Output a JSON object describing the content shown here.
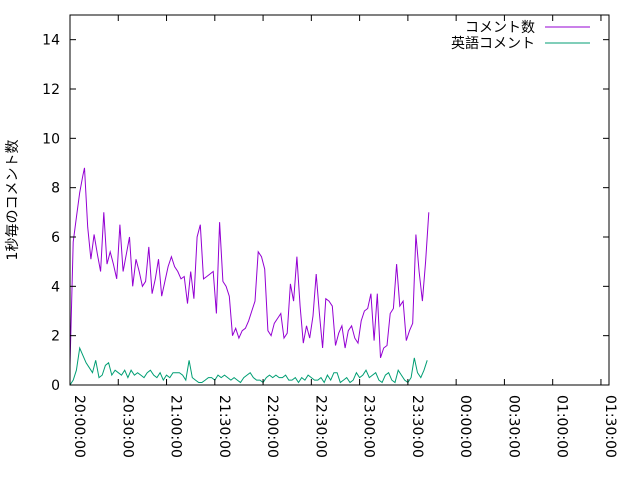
{
  "chart_data": {
    "type": "line",
    "title": "",
    "xlabel": "",
    "ylabel": "1秒毎のコメント数",
    "xlim_minutes": [
      0,
      335
    ],
    "ylim": [
      0,
      15
    ],
    "y_ticks": [
      0,
      2,
      4,
      6,
      8,
      10,
      12,
      14
    ],
    "x_ticks": [
      {
        "label": "20:00:00",
        "minute": 0
      },
      {
        "label": "20:30:00",
        "minute": 30
      },
      {
        "label": "21:00:00",
        "minute": 60
      },
      {
        "label": "21:30:00",
        "minute": 90
      },
      {
        "label": "22:00:00",
        "minute": 120
      },
      {
        "label": "22:30:00",
        "minute": 150
      },
      {
        "label": "23:00:00",
        "minute": 180
      },
      {
        "label": "23:30:00",
        "minute": 210
      },
      {
        "label": "00:00:00",
        "minute": 240
      },
      {
        "label": "00:30:00",
        "minute": 270
      },
      {
        "label": "01:00:00",
        "minute": 300
      },
      {
        "label": "01:30:00",
        "minute": 330
      }
    ],
    "legend_position": "top-right",
    "grid": false,
    "series": [
      {
        "name": "コメント数",
        "color": "#9400d3",
        "points": [
          [
            0,
            0.8
          ],
          [
            2,
            5.8
          ],
          [
            4,
            6.8
          ],
          [
            6,
            7.8
          ],
          [
            8,
            8.5
          ],
          [
            9,
            8.8
          ],
          [
            11,
            6.4
          ],
          [
            13,
            5.1
          ],
          [
            15,
            6.1
          ],
          [
            17,
            5.3
          ],
          [
            19,
            4.6
          ],
          [
            21,
            7.0
          ],
          [
            23,
            4.9
          ],
          [
            25,
            5.4
          ],
          [
            27,
            4.9
          ],
          [
            29,
            4.3
          ],
          [
            31,
            6.5
          ],
          [
            33,
            4.6
          ],
          [
            35,
            5.3
          ],
          [
            37,
            6.0
          ],
          [
            39,
            4.0
          ],
          [
            41,
            5.1
          ],
          [
            43,
            4.6
          ],
          [
            45,
            4.0
          ],
          [
            47,
            4.2
          ],
          [
            49,
            5.6
          ],
          [
            51,
            3.7
          ],
          [
            53,
            4.3
          ],
          [
            55,
            5.1
          ],
          [
            57,
            3.6
          ],
          [
            59,
            4.2
          ],
          [
            61,
            4.8
          ],
          [
            63,
            5.2
          ],
          [
            65,
            4.8
          ],
          [
            67,
            4.6
          ],
          [
            69,
            4.3
          ],
          [
            71,
            4.4
          ],
          [
            73,
            3.3
          ],
          [
            75,
            4.6
          ],
          [
            77,
            3.5
          ],
          [
            79,
            6.0
          ],
          [
            81,
            6.5
          ],
          [
            83,
            4.3
          ],
          [
            85,
            4.4
          ],
          [
            87,
            4.5
          ],
          [
            89,
            4.6
          ],
          [
            91,
            2.9
          ],
          [
            93,
            6.6
          ],
          [
            95,
            4.2
          ],
          [
            97,
            4.0
          ],
          [
            99,
            3.6
          ],
          [
            101,
            2.0
          ],
          [
            103,
            2.3
          ],
          [
            105,
            1.9
          ],
          [
            107,
            2.2
          ],
          [
            109,
            2.3
          ],
          [
            111,
            2.6
          ],
          [
            113,
            3.0
          ],
          [
            115,
            3.4
          ],
          [
            117,
            5.4
          ],
          [
            119,
            5.2
          ],
          [
            121,
            4.7
          ],
          [
            123,
            2.2
          ],
          [
            125,
            2.0
          ],
          [
            127,
            2.5
          ],
          [
            129,
            2.7
          ],
          [
            131,
            2.9
          ],
          [
            133,
            1.9
          ],
          [
            135,
            2.1
          ],
          [
            137,
            4.1
          ],
          [
            139,
            3.4
          ],
          [
            141,
            5.2
          ],
          [
            143,
            3.2
          ],
          [
            145,
            1.7
          ],
          [
            147,
            2.4
          ],
          [
            149,
            1.9
          ],
          [
            151,
            2.8
          ],
          [
            153,
            4.5
          ],
          [
            155,
            2.9
          ],
          [
            157,
            1.5
          ],
          [
            159,
            3.5
          ],
          [
            161,
            3.4
          ],
          [
            163,
            3.2
          ],
          [
            165,
            1.6
          ],
          [
            167,
            2.1
          ],
          [
            169,
            2.4
          ],
          [
            171,
            1.5
          ],
          [
            173,
            2.2
          ],
          [
            175,
            2.4
          ],
          [
            177,
            1.9
          ],
          [
            179,
            1.7
          ],
          [
            181,
            2.6
          ],
          [
            183,
            3.0
          ],
          [
            185,
            3.1
          ],
          [
            187,
            3.7
          ],
          [
            189,
            1.8
          ],
          [
            191,
            3.7
          ],
          [
            193,
            1.1
          ],
          [
            195,
            1.5
          ],
          [
            197,
            1.6
          ],
          [
            199,
            2.9
          ],
          [
            201,
            3.1
          ],
          [
            203,
            4.9
          ],
          [
            205,
            3.2
          ],
          [
            207,
            3.4
          ],
          [
            209,
            1.8
          ],
          [
            211,
            2.2
          ],
          [
            213,
            2.5
          ],
          [
            215,
            6.1
          ],
          [
            217,
            4.6
          ],
          [
            219,
            3.4
          ],
          [
            221,
            5.0
          ],
          [
            223,
            7.0
          ]
        ]
      },
      {
        "name": "英語コメント",
        "color": "#009e73",
        "points": [
          [
            0,
            0.0
          ],
          [
            2,
            0.2
          ],
          [
            4,
            0.6
          ],
          [
            6,
            1.5
          ],
          [
            8,
            1.2
          ],
          [
            10,
            0.9
          ],
          [
            12,
            0.7
          ],
          [
            14,
            0.5
          ],
          [
            16,
            1.0
          ],
          [
            18,
            0.3
          ],
          [
            20,
            0.4
          ],
          [
            22,
            0.8
          ],
          [
            24,
            0.9
          ],
          [
            26,
            0.4
          ],
          [
            28,
            0.6
          ],
          [
            30,
            0.5
          ],
          [
            32,
            0.4
          ],
          [
            34,
            0.6
          ],
          [
            36,
            0.3
          ],
          [
            38,
            0.6
          ],
          [
            40,
            0.4
          ],
          [
            42,
            0.5
          ],
          [
            44,
            0.4
          ],
          [
            46,
            0.3
          ],
          [
            48,
            0.5
          ],
          [
            50,
            0.6
          ],
          [
            52,
            0.4
          ],
          [
            54,
            0.3
          ],
          [
            56,
            0.5
          ],
          [
            58,
            0.2
          ],
          [
            60,
            0.4
          ],
          [
            62,
            0.3
          ],
          [
            64,
            0.5
          ],
          [
            66,
            0.5
          ],
          [
            68,
            0.5
          ],
          [
            70,
            0.4
          ],
          [
            72,
            0.2
          ],
          [
            74,
            1.0
          ],
          [
            76,
            0.3
          ],
          [
            78,
            0.2
          ],
          [
            80,
            0.1
          ],
          [
            82,
            0.1
          ],
          [
            84,
            0.2
          ],
          [
            86,
            0.3
          ],
          [
            88,
            0.3
          ],
          [
            90,
            0.2
          ],
          [
            92,
            0.4
          ],
          [
            94,
            0.3
          ],
          [
            96,
            0.4
          ],
          [
            98,
            0.3
          ],
          [
            100,
            0.2
          ],
          [
            102,
            0.3
          ],
          [
            104,
            0.2
          ],
          [
            106,
            0.1
          ],
          [
            108,
            0.3
          ],
          [
            110,
            0.4
          ],
          [
            112,
            0.5
          ],
          [
            114,
            0.3
          ],
          [
            116,
            0.2
          ],
          [
            118,
            0.2
          ],
          [
            120,
            0.1
          ],
          [
            122,
            0.3
          ],
          [
            124,
            0.4
          ],
          [
            126,
            0.3
          ],
          [
            128,
            0.4
          ],
          [
            130,
            0.3
          ],
          [
            132,
            0.3
          ],
          [
            134,
            0.4
          ],
          [
            136,
            0.2
          ],
          [
            138,
            0.2
          ],
          [
            140,
            0.3
          ],
          [
            142,
            0.1
          ],
          [
            144,
            0.3
          ],
          [
            146,
            0.2
          ],
          [
            148,
            0.4
          ],
          [
            150,
            0.3
          ],
          [
            152,
            0.2
          ],
          [
            154,
            0.2
          ],
          [
            156,
            0.3
          ],
          [
            158,
            0.1
          ],
          [
            160,
            0.4
          ],
          [
            162,
            0.2
          ],
          [
            164,
            0.5
          ],
          [
            166,
            0.5
          ],
          [
            168,
            0.1
          ],
          [
            170,
            0.2
          ],
          [
            172,
            0.3
          ],
          [
            174,
            0.1
          ],
          [
            176,
            0.2
          ],
          [
            178,
            0.5
          ],
          [
            180,
            0.3
          ],
          [
            182,
            0.4
          ],
          [
            184,
            0.6
          ],
          [
            186,
            0.3
          ],
          [
            188,
            0.4
          ],
          [
            190,
            0.5
          ],
          [
            192,
            0.2
          ],
          [
            194,
            0.1
          ],
          [
            196,
            0.4
          ],
          [
            198,
            0.5
          ],
          [
            200,
            0.2
          ],
          [
            202,
            0.1
          ],
          [
            204,
            0.6
          ],
          [
            206,
            0.4
          ],
          [
            208,
            0.2
          ],
          [
            210,
            0.1
          ],
          [
            212,
            0.3
          ],
          [
            214,
            1.1
          ],
          [
            216,
            0.5
          ],
          [
            218,
            0.3
          ],
          [
            220,
            0.6
          ],
          [
            222,
            1.0
          ]
        ]
      }
    ]
  }
}
